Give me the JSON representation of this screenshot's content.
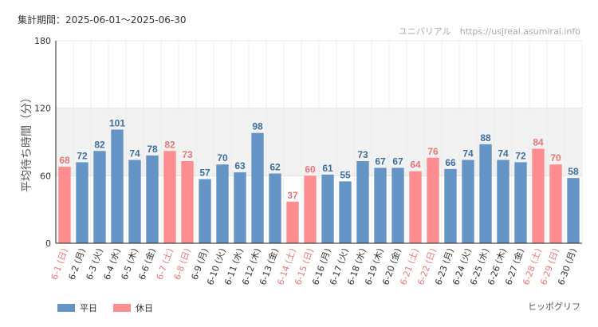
{
  "header": {
    "period": "集計期間：2025-06-01～2025-06-30",
    "site": "ユニバリアル　https://usjreal.asumirai.info"
  },
  "footer": {
    "credit": "ヒッポグリフ"
  },
  "colors": {
    "weekday": "#6594c6",
    "holiday": "#fd8d8e",
    "holiday_label": "#e8777a",
    "weekday_label": "#3e6f9e"
  },
  "chart_data": {
    "type": "bar",
    "ylabel": "平均待ち時間（分）",
    "ylim": [
      0,
      180
    ],
    "yticks": [
      0,
      60,
      120,
      180
    ],
    "highlight_band": [
      60,
      120
    ],
    "legend": {
      "position": "bottom-left",
      "entries": [
        {
          "name": "平日",
          "key": "weekday"
        },
        {
          "name": "休日",
          "key": "holiday"
        }
      ]
    },
    "categories": [
      "6-1 (日)",
      "6-2 (月)",
      "6-3 (火)",
      "6-4 (水)",
      "6-5 (木)",
      "6-6 (金)",
      "6-7 (土)",
      "6-8 (日)",
      "6-9 (月)",
      "6-10 (火)",
      "6-11 (水)",
      "6-12 (木)",
      "6-13 (金)",
      "6-14 (土)",
      "6-15 (日)",
      "6-16 (月)",
      "6-17 (火)",
      "6-18 (水)",
      "6-19 (木)",
      "6-20 (金)",
      "6-21 (土)",
      "6-22 (日)",
      "6-23 (月)",
      "6-24 (火)",
      "6-25 (水)",
      "6-26 (木)",
      "6-27 (金)",
      "6-28 (土)",
      "6-29 (日)",
      "6-30 (月)"
    ],
    "values": [
      68,
      72,
      82,
      101,
      74,
      78,
      82,
      73,
      57,
      70,
      63,
      98,
      62,
      37,
      60,
      61,
      55,
      73,
      67,
      67,
      64,
      76,
      66,
      74,
      88,
      74,
      72,
      84,
      70,
      58
    ],
    "day_type": [
      "holiday",
      "weekday",
      "weekday",
      "weekday",
      "weekday",
      "weekday",
      "holiday",
      "holiday",
      "weekday",
      "weekday",
      "weekday",
      "weekday",
      "weekday",
      "holiday",
      "holiday",
      "weekday",
      "weekday",
      "weekday",
      "weekday",
      "weekday",
      "holiday",
      "holiday",
      "weekday",
      "weekday",
      "weekday",
      "weekday",
      "weekday",
      "holiday",
      "holiday",
      "weekday"
    ]
  }
}
